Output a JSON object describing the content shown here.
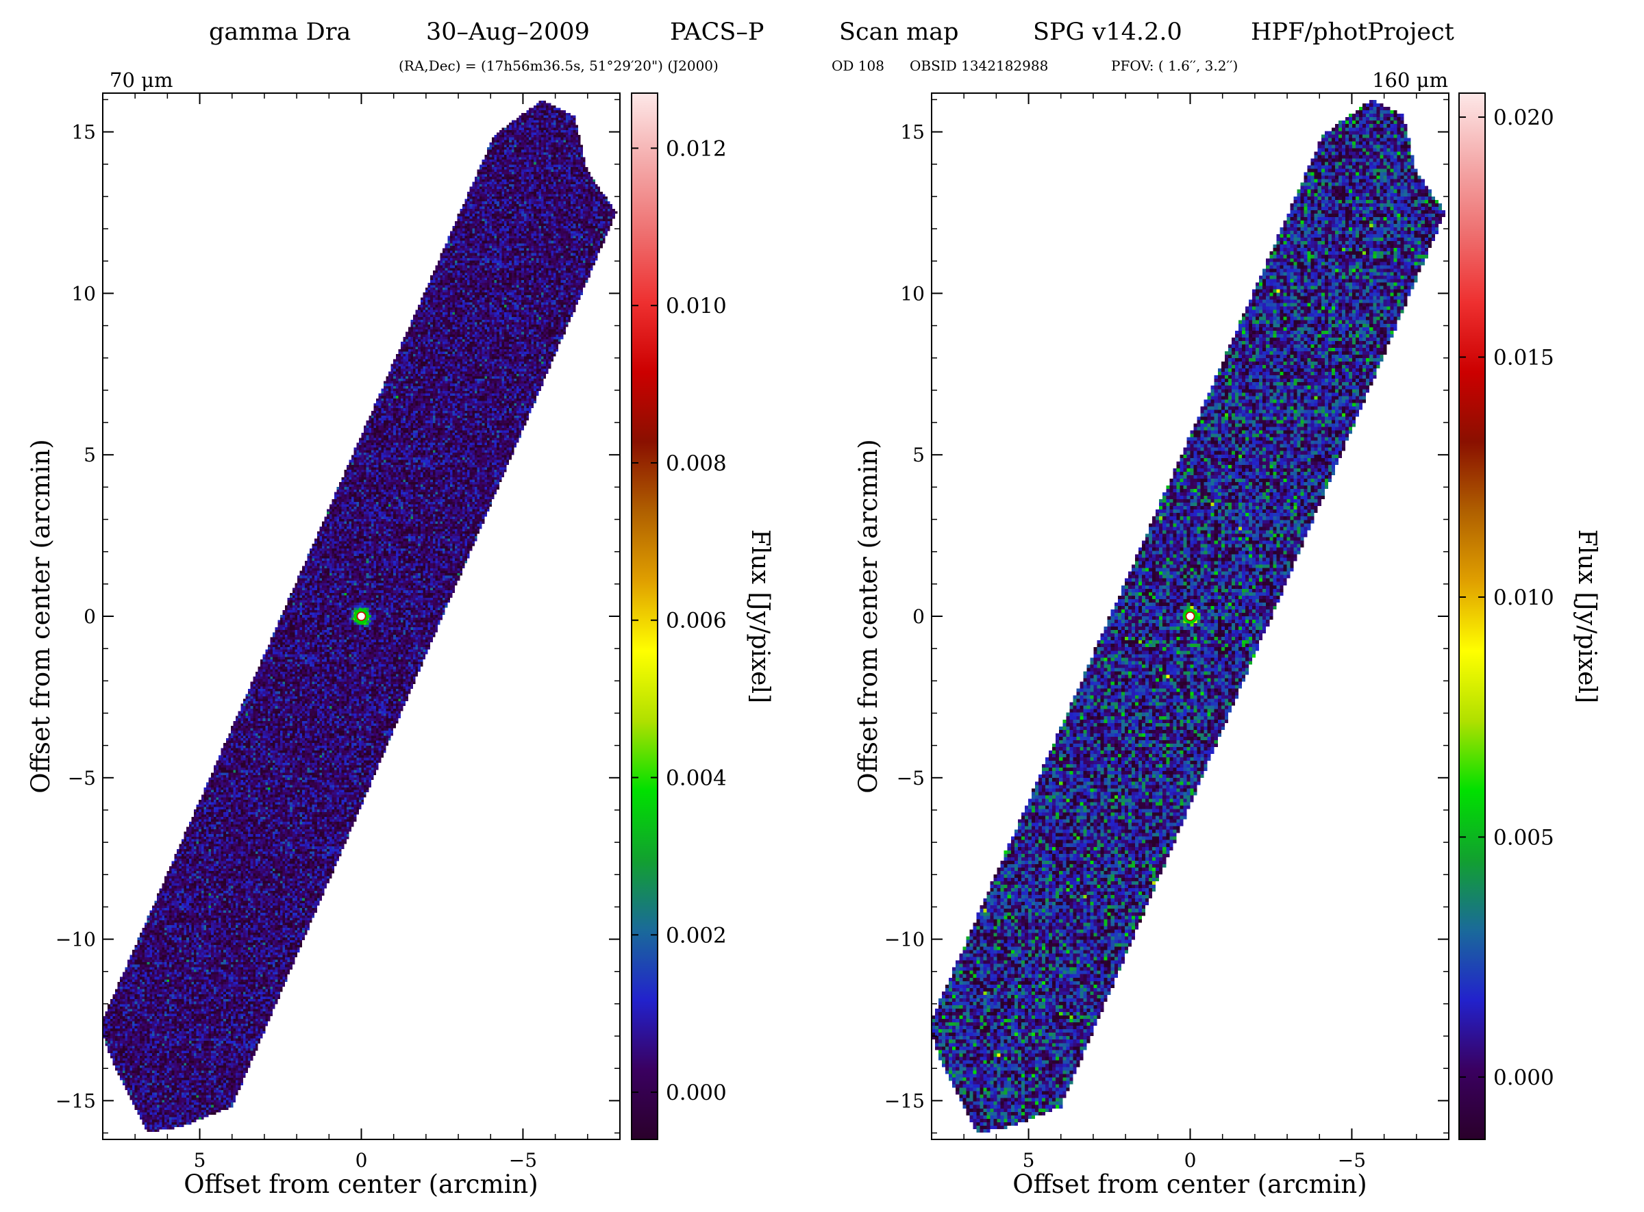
{
  "header": {
    "target": "gamma Dra",
    "date": "30–Aug–2009",
    "instrument": "PACS–P",
    "mode": "Scan map",
    "pipeline": "SPG v14.2.0",
    "processing": "HPF/photProject",
    "coords": "(RA,Dec) = (17h56m36.5s, 51°29′20\") (J2000)",
    "od": "OD 108",
    "obsid": "OBSID 1342182988",
    "pfov": "PFOV: ( 1.6′′, 3.2′′)"
  },
  "colormap": [
    "#2a002a",
    "#3a0060",
    "#2222cc",
    "#1a6a9a",
    "#12a030",
    "#00e000",
    "#b0e000",
    "#ffff00",
    "#e0a000",
    "#b06000",
    "#8a1000",
    "#cc0000",
    "#ee3030",
    "#ee7070",
    "#f4aaaa",
    "#fde8e8"
  ],
  "chart_data": [
    {
      "type": "heatmap",
      "band": "70 μm",
      "xlabel": "Offset from center (arcmin)",
      "ylabel": "Offset from center (arcmin)",
      "xlim": [
        8,
        -8
      ],
      "ylim": [
        -16.2,
        16.2
      ],
      "xticks": [
        5,
        0,
        -5
      ],
      "xtick_labels": [
        "5",
        "0",
        "−5"
      ],
      "yticks": [
        15,
        10,
        5,
        0,
        -5,
        -10,
        -15
      ],
      "ytick_labels": [
        "15",
        "10",
        "5",
        "0",
        "−5",
        "−10",
        "−15"
      ],
      "coverage_polygon": [
        [
          -4.1,
          14.9
        ],
        [
          -5.6,
          16.0
        ],
        [
          -6.6,
          15.5
        ],
        [
          -7.0,
          13.8
        ],
        [
          -7.9,
          12.5
        ],
        [
          4.0,
          -15.2
        ],
        [
          5.5,
          -15.8
        ],
        [
          6.6,
          -16.0
        ],
        [
          7.7,
          -13.8
        ],
        [
          8.1,
          -12.7
        ]
      ],
      "source": {
        "x": 0.0,
        "y": 0.0,
        "label": "gamma Dra"
      },
      "colorbar": {
        "label": "Flux [Jy/pixel]",
        "range": [
          -0.0006,
          0.0127
        ],
        "ticks": [
          0.0,
          0.002,
          0.004,
          0.006,
          0.008,
          0.01,
          0.012
        ],
        "tick_labels": [
          "0.000",
          "0.002",
          "0.004",
          "0.006",
          "0.008",
          "0.010",
          "0.012"
        ]
      },
      "noise": {
        "mean": 0.0003,
        "sigma": 0.0007
      }
    },
    {
      "type": "heatmap",
      "band": "160 μm",
      "xlabel": "Offset from center (arcmin)",
      "ylabel": "Offset from center (arcmin)",
      "xlim": [
        8,
        -8
      ],
      "ylim": [
        -16.2,
        16.2
      ],
      "xticks": [
        5,
        0,
        -5
      ],
      "xtick_labels": [
        "5",
        "0",
        "−5"
      ],
      "yticks": [
        15,
        10,
        5,
        0,
        -5,
        -10,
        -15
      ],
      "ytick_labels": [
        "15",
        "10",
        "5",
        "0",
        "−5",
        "−10",
        "−15"
      ],
      "coverage_polygon": [
        [
          -4.1,
          14.9
        ],
        [
          -5.6,
          16.0
        ],
        [
          -6.6,
          15.5
        ],
        [
          -7.0,
          13.8
        ],
        [
          -7.9,
          12.5
        ],
        [
          4.0,
          -15.2
        ],
        [
          5.5,
          -15.8
        ],
        [
          6.6,
          -16.0
        ],
        [
          7.7,
          -13.8
        ],
        [
          8.1,
          -12.7
        ]
      ],
      "source": {
        "x": 0.0,
        "y": 0.0,
        "label": "gamma Dra"
      },
      "colorbar": {
        "label": "Flux [Jy/pixel]",
        "range": [
          -0.0013,
          0.0205
        ],
        "ticks": [
          0.0,
          0.005,
          0.01,
          0.015,
          0.02
        ],
        "tick_labels": [
          "0.000",
          "0.005",
          "0.010",
          "0.015",
          "0.020"
        ]
      },
      "noise": {
        "mean": 0.0012,
        "sigma": 0.0018
      }
    }
  ]
}
